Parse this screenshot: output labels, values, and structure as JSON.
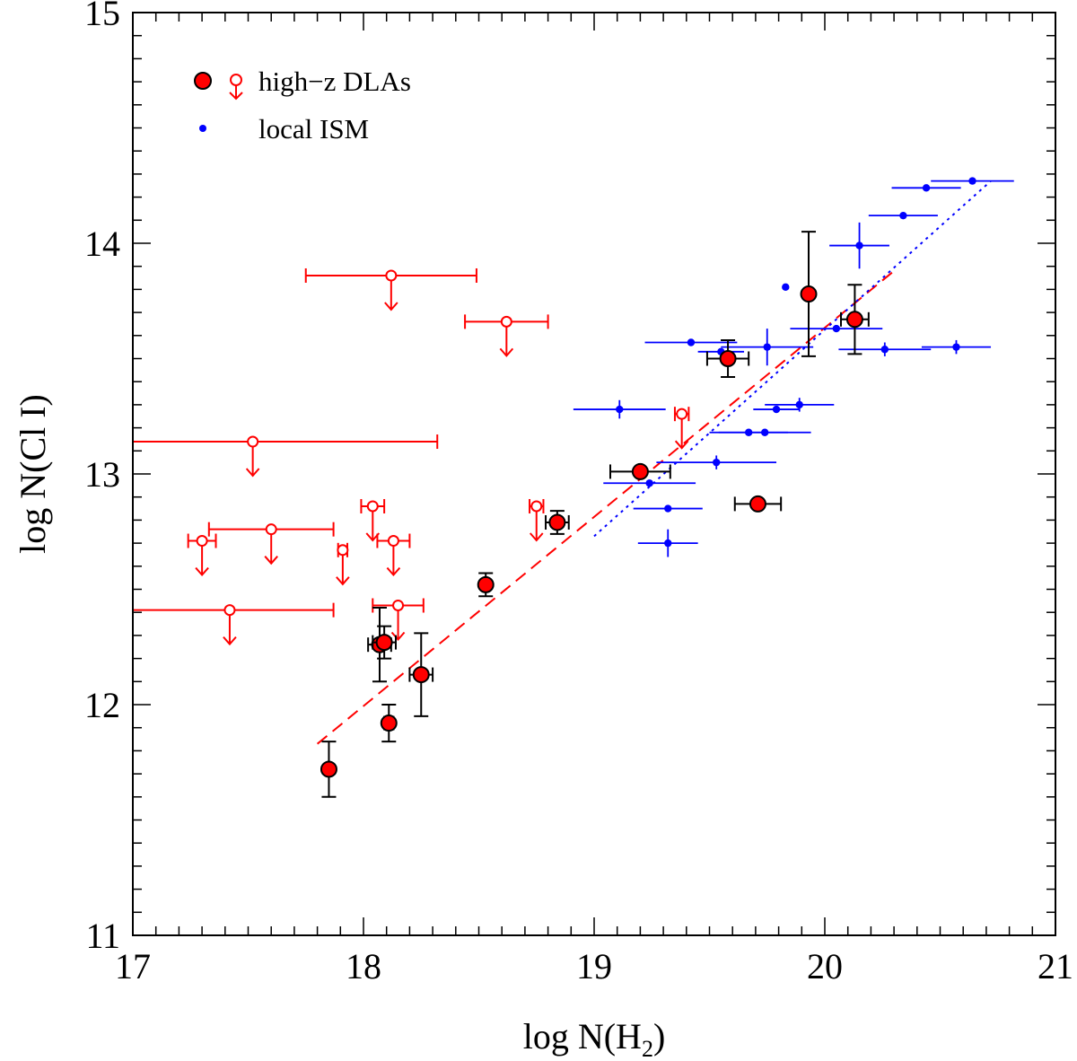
{
  "chart_data": {
    "type": "scatter",
    "title": "",
    "xlabel": "log N(H",
    "xlabel_sub": "2",
    "xlabel_close": ")",
    "ylabel": "log N(Cl I)",
    "xlim": [
      17,
      21
    ],
    "ylim": [
      11,
      15
    ],
    "x_ticks": [
      "17",
      "18",
      "19",
      "20",
      "21"
    ],
    "y_ticks": [
      "11",
      "12",
      "13",
      "14",
      "15"
    ],
    "legend": {
      "placement": "top-left",
      "entries": [
        {
          "label": "high−z DLAs",
          "marker": "filled-red-circle + open-red-circle-upper-limit"
        },
        {
          "label": "local ISM",
          "marker": "small-blue-dot"
        }
      ]
    },
    "series": [
      {
        "name": "high-z DLAs (detections)",
        "color": "#ff0000",
        "points": [
          {
            "x": 17.85,
            "y": 11.72,
            "xerr": [
              0.0,
              0.0
            ],
            "yerr": [
              0.12,
              0.12
            ]
          },
          {
            "x": 18.07,
            "y": 12.26,
            "xerr": [
              0.05,
              0.05
            ],
            "yerr": [
              0.16,
              0.16
            ]
          },
          {
            "x": 18.09,
            "y": 12.27,
            "xerr": [
              0.05,
              0.05
            ],
            "yerr": [
              0.07,
              0.07
            ]
          },
          {
            "x": 18.11,
            "y": 11.92,
            "xerr": [
              0.02,
              0.02
            ],
            "yerr": [
              0.08,
              0.08
            ]
          },
          {
            "x": 18.25,
            "y": 12.13,
            "xerr": [
              0.05,
              0.05
            ],
            "yerr": [
              0.18,
              0.18
            ]
          },
          {
            "x": 18.53,
            "y": 12.52,
            "xerr": [
              0.0,
              0.0
            ],
            "yerr": [
              0.05,
              0.05
            ]
          },
          {
            "x": 18.84,
            "y": 12.79,
            "xerr": [
              0.05,
              0.05
            ],
            "yerr": [
              0.05,
              0.05
            ]
          },
          {
            "x": 19.2,
            "y": 13.01,
            "xerr": [
              0.13,
              0.13
            ],
            "yerr": [
              0.0,
              0.0
            ]
          },
          {
            "x": 19.58,
            "y": 13.5,
            "xerr": [
              0.09,
              0.09
            ],
            "yerr": [
              0.08,
              0.08
            ]
          },
          {
            "x": 19.71,
            "y": 12.87,
            "xerr": [
              0.1,
              0.1
            ],
            "yerr": [
              0.0,
              0.0
            ]
          },
          {
            "x": 19.93,
            "y": 13.78,
            "xerr": [
              0.0,
              0.0
            ],
            "yerr": [
              0.27,
              0.27
            ]
          },
          {
            "x": 20.13,
            "y": 13.67,
            "xerr": [
              0.06,
              0.06
            ],
            "yerr": [
              0.15,
              0.15
            ]
          }
        ]
      },
      {
        "name": "high-z DLAs (upper limits)",
        "color": "#ff0000",
        "points": [
          {
            "x": 17.3,
            "y": 12.71,
            "xerr": [
              0.06,
              0.06
            ]
          },
          {
            "x": 17.42,
            "y": 12.41,
            "xerr": [
              0.42,
              0.45
            ]
          },
          {
            "x": 17.52,
            "y": 13.14,
            "xerr": [
              0.52,
              0.8
            ]
          },
          {
            "x": 17.6,
            "y": 12.76,
            "xerr": [
              0.27,
              0.27
            ]
          },
          {
            "x": 17.91,
            "y": 12.67,
            "xerr": [
              0.02,
              0.02
            ]
          },
          {
            "x": 18.04,
            "y": 12.86,
            "xerr": [
              0.05,
              0.05
            ]
          },
          {
            "x": 18.12,
            "y": 13.86,
            "xerr": [
              0.37,
              0.37
            ]
          },
          {
            "x": 18.13,
            "y": 12.71,
            "xerr": [
              0.07,
              0.07
            ]
          },
          {
            "x": 18.15,
            "y": 12.43,
            "xerr": [
              0.11,
              0.11
            ]
          },
          {
            "x": 18.62,
            "y": 13.66,
            "xerr": [
              0.18,
              0.18
            ]
          },
          {
            "x": 18.75,
            "y": 12.86,
            "xerr": [
              0.03,
              0.03
            ]
          },
          {
            "x": 19.38,
            "y": 13.26,
            "xerr": [
              0.03,
              0.03
            ]
          }
        ]
      },
      {
        "name": "local ISM",
        "color": "#0000ff",
        "points": [
          {
            "x": 19.11,
            "y": 13.28,
            "xerr": [
              0.2,
              0.2
            ],
            "yerr": [
              0.04,
              0.04
            ]
          },
          {
            "x": 19.24,
            "y": 12.96,
            "xerr": [
              0.2,
              0.2
            ],
            "yerr": [
              0.0,
              0.0
            ]
          },
          {
            "x": 19.32,
            "y": 12.7,
            "xerr": [
              0.13,
              0.13
            ],
            "yerr": [
              0.06,
              0.06
            ]
          },
          {
            "x": 19.32,
            "y": 12.85,
            "xerr": [
              0.15,
              0.15
            ],
            "yerr": [
              0.0,
              0.0
            ]
          },
          {
            "x": 19.42,
            "y": 13.57,
            "xerr": [
              0.2,
              0.2
            ],
            "yerr": [
              0.0,
              0.0
            ]
          },
          {
            "x": 19.53,
            "y": 13.05,
            "xerr": [
              0.26,
              0.26
            ],
            "yerr": [
              0.03,
              0.03
            ]
          },
          {
            "x": 19.55,
            "y": 13.53,
            "xerr": [
              0.1,
              0.1
            ],
            "yerr": [
              0.0,
              0.0
            ]
          },
          {
            "x": 19.67,
            "y": 13.18,
            "xerr": [
              0.17,
              0.17
            ],
            "yerr": [
              0.0,
              0.0
            ]
          },
          {
            "x": 19.74,
            "y": 13.18,
            "xerr": [
              0.2,
              0.2
            ],
            "yerr": [
              0.0,
              0.0
            ]
          },
          {
            "x": 19.75,
            "y": 13.55,
            "xerr": [
              0.2,
              0.2
            ],
            "yerr": [
              0.08,
              0.08
            ]
          },
          {
            "x": 19.79,
            "y": 13.28,
            "xerr": [
              0.1,
              0.1
            ],
            "yerr": [
              0.0,
              0.0
            ]
          },
          {
            "x": 19.83,
            "y": 13.81,
            "xerr": [
              0.0,
              0.0
            ],
            "yerr": [
              0.0,
              0.0
            ]
          },
          {
            "x": 19.89,
            "y": 13.3,
            "xerr": [
              0.15,
              0.15
            ],
            "yerr": [
              0.03,
              0.03
            ]
          },
          {
            "x": 20.05,
            "y": 13.63,
            "xerr": [
              0.2,
              0.2
            ],
            "yerr": [
              0.0,
              0.0
            ]
          },
          {
            "x": 20.15,
            "y": 13.99,
            "xerr": [
              0.13,
              0.13
            ],
            "yerr": [
              0.1,
              0.1
            ]
          },
          {
            "x": 20.26,
            "y": 13.54,
            "xerr": [
              0.2,
              0.2
            ],
            "yerr": [
              0.03,
              0.03
            ]
          },
          {
            "x": 20.34,
            "y": 14.12,
            "xerr": [
              0.15,
              0.15
            ],
            "yerr": [
              0.0,
              0.0
            ]
          },
          {
            "x": 20.44,
            "y": 14.24,
            "xerr": [
              0.15,
              0.15
            ],
            "yerr": [
              0.0,
              0.0
            ]
          },
          {
            "x": 20.57,
            "y": 13.55,
            "xerr": [
              0.15,
              0.15
            ],
            "yerr": [
              0.03,
              0.03
            ]
          },
          {
            "x": 20.64,
            "y": 14.27,
            "xerr": [
              0.18,
              0.18
            ],
            "yerr": [
              0.0,
              0.0
            ]
          }
        ]
      }
    ],
    "fit_lines": [
      {
        "name": "high-z DLAs fit",
        "color": "#ff0000",
        "style": "dashed",
        "x": [
          17.8,
          20.3
        ],
        "y": [
          11.83,
          13.88
        ]
      },
      {
        "name": "local ISM fit",
        "color": "#0000ff",
        "style": "dotted",
        "x": [
          19.0,
          20.72
        ],
        "y": [
          12.73,
          14.27
        ]
      }
    ]
  }
}
